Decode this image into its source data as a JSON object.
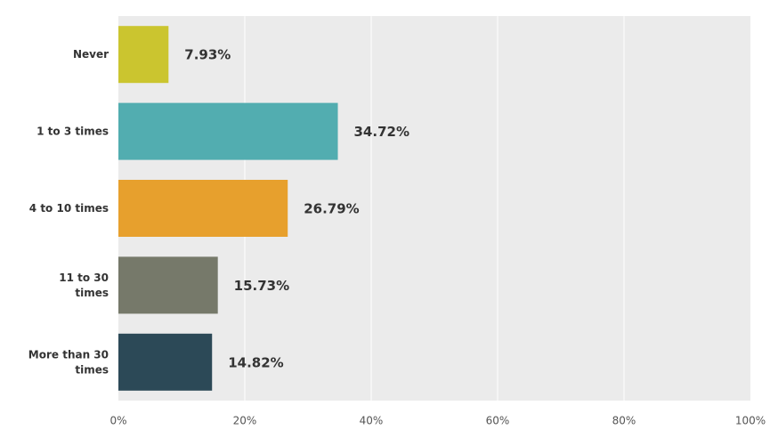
{
  "chart_data": {
    "type": "bar",
    "orientation": "horizontal",
    "categories": [
      "Never",
      "1 to 3 times",
      "4 to 10 times",
      "11 to 30 times",
      "More than 30 times"
    ],
    "values": [
      7.93,
      34.72,
      26.79,
      15.73,
      14.82
    ],
    "value_labels": [
      "7.93%",
      "34.72%",
      "26.79%",
      "15.73%",
      "14.82%"
    ],
    "colors": [
      "#cbc52f",
      "#52adb0",
      "#e7a02d",
      "#76796a",
      "#2c4957"
    ],
    "xlim": [
      0,
      100
    ],
    "xticks": [
      {
        "value": 0,
        "label": "0%"
      },
      {
        "value": 20,
        "label": "20%"
      },
      {
        "value": 40,
        "label": "40%"
      },
      {
        "value": 60,
        "label": "60%"
      },
      {
        "value": 80,
        "label": "80%"
      },
      {
        "value": 100,
        "label": "100%"
      }
    ],
    "grid": true
  }
}
